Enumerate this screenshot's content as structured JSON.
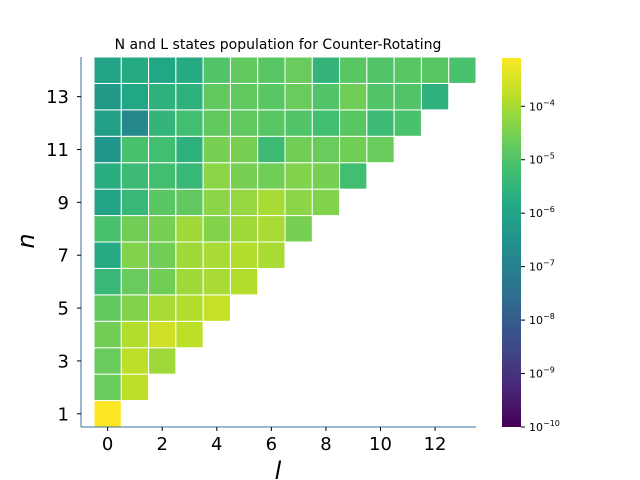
{
  "chart_data": {
    "type": "heatmap",
    "title": "N and L states population for Counter-Rotating",
    "xlabel": "l",
    "ylabel": "n",
    "x_ticks": [
      "0",
      "2",
      "4",
      "6",
      "8",
      "10",
      "12"
    ],
    "y_ticks": [
      "1",
      "3",
      "5",
      "7",
      "9",
      "11",
      "13"
    ],
    "color_scale": "log",
    "colormap": "viridis",
    "colorbar_range": [
      1e-10,
      0.0008
    ],
    "colorbar_ticks": [
      {
        "exp": -10,
        "base": "10",
        "power": "−10"
      },
      {
        "exp": -9,
        "base": "10",
        "power": "−9"
      },
      {
        "exp": -8,
        "base": "10",
        "power": "−8"
      },
      {
        "exp": -7,
        "base": "10",
        "power": "−7"
      },
      {
        "exp": -6,
        "base": "10",
        "power": "−6"
      },
      {
        "exp": -5,
        "base": "10",
        "power": "−5"
      },
      {
        "exp": -4,
        "base": "10",
        "power": "−4"
      }
    ],
    "grid_color": "#ffffff",
    "rows": [
      {
        "n": 1,
        "log10_values": [
          -3.1
        ]
      },
      {
        "n": 2,
        "log10_values": [
          -4.7,
          -3.8
        ]
      },
      {
        "n": 3,
        "log10_values": [
          -4.7,
          -3.8,
          -4.1
        ]
      },
      {
        "n": 4,
        "log10_values": [
          -4.6,
          -3.9,
          -3.6,
          -3.8
        ]
      },
      {
        "n": 5,
        "log10_values": [
          -4.8,
          -4.4,
          -4.0,
          -3.9,
          -3.7
        ]
      },
      {
        "n": 6,
        "log10_values": [
          -5.4,
          -4.7,
          -4.6,
          -4.1,
          -4.0,
          -3.9
        ]
      },
      {
        "n": 7,
        "log10_values": [
          -5.8,
          -4.4,
          -4.6,
          -4.1,
          -4.0,
          -3.9,
          -4.0
        ]
      },
      {
        "n": 8,
        "log10_values": [
          -5.1,
          -4.6,
          -4.5,
          -4.1,
          -4.4,
          -4.1,
          -4.0,
          -4.5
        ]
      },
      {
        "n": 9,
        "log10_values": [
          -6.0,
          -5.4,
          -4.9,
          -4.8,
          -4.3,
          -4.2,
          -4.0,
          -4.3,
          -4.4
        ]
      },
      {
        "n": 10,
        "log10_values": [
          -5.7,
          -5.3,
          -5.2,
          -5.4,
          -4.3,
          -4.5,
          -4.6,
          -4.4,
          -4.5,
          -5.2
        ]
      },
      {
        "n": 11,
        "log10_values": [
          -6.4,
          -5.1,
          -5.2,
          -5.6,
          -4.5,
          -4.5,
          -5.3,
          -4.6,
          -4.7,
          -4.6,
          -4.7
        ]
      },
      {
        "n": 12,
        "log10_values": [
          -6.1,
          -6.8,
          -5.5,
          -5.2,
          -4.8,
          -4.8,
          -4.9,
          -5.0,
          -5.2,
          -4.9,
          -5.3,
          -5.1
        ]
      },
      {
        "n": 13,
        "log10_values": [
          -6.3,
          -5.9,
          -5.6,
          -5.6,
          -4.8,
          -4.8,
          -4.9,
          -4.7,
          -5.0,
          -4.6,
          -5.0,
          -5.0,
          -5.6
        ]
      },
      {
        "n": 14,
        "log10_values": [
          -6.0,
          -5.8,
          -5.9,
          -5.8,
          -5.0,
          -4.8,
          -4.9,
          -4.7,
          -5.5,
          -4.9,
          -5.0,
          -4.9,
          -4.9,
          -5.1
        ]
      }
    ]
  }
}
